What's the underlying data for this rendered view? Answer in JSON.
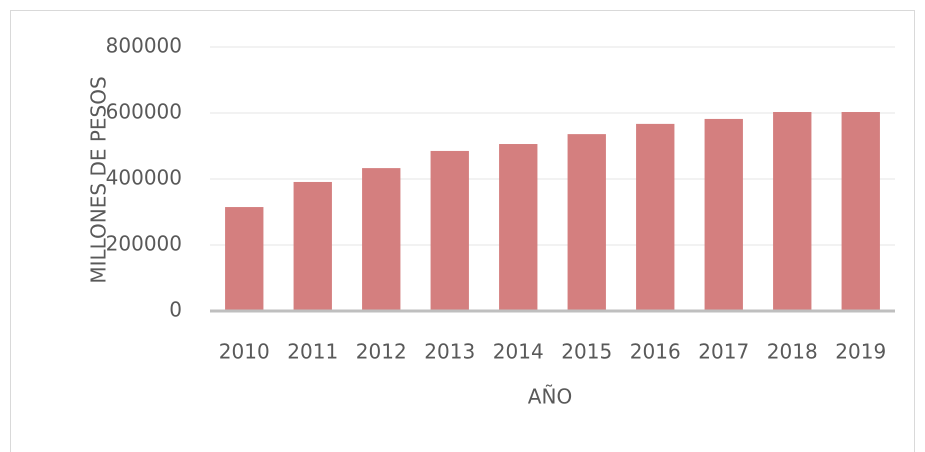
{
  "chart_data": {
    "type": "bar",
    "categories": [
      "2010",
      "2011",
      "2012",
      "2013",
      "2014",
      "2015",
      "2016",
      "2017",
      "2018",
      "2019"
    ],
    "values": [
      315000,
      391000,
      433000,
      485000,
      506000,
      536000,
      567000,
      582000,
      603000,
      603000
    ],
    "color": "#d47f7f",
    "x_label": "AÑO",
    "y_label": "MILLONES DE PESOS",
    "ylim": [
      0,
      800000
    ],
    "yticks": [
      0,
      200000,
      400000,
      600000,
      800000
    ],
    "grid": true
  }
}
